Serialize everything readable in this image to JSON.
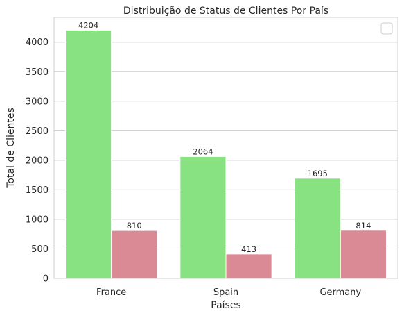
{
  "chart_data": {
    "type": "bar",
    "title": "Distribuição de Status de Clientes Por País",
    "xlabel": "Países",
    "ylabel": "Total de Clientes",
    "categories": [
      "France",
      "Spain",
      "Germany"
    ],
    "series": [
      {
        "values": [
          4204,
          2064,
          1695
        ],
        "color": "#88e281"
      },
      {
        "values": [
          810,
          413,
          814
        ],
        "color": "#d98a95"
      }
    ],
    "ylim": [
      0,
      4420
    ],
    "yticks": [
      0,
      500,
      1000,
      1500,
      2000,
      2500,
      3000,
      3500,
      4000
    ],
    "grid": true,
    "legend": "top-right (empty)",
    "data_labels": true
  }
}
